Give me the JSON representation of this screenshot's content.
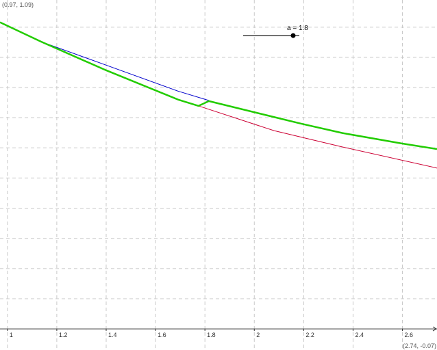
{
  "view": {
    "top_left_label": "(0.97, 1.09)",
    "bottom_right_label": "(2.74, -0.07)"
  },
  "slider": {
    "label": "a = 1.8",
    "value": 1.8,
    "fraction": 0.89
  },
  "chart_data": {
    "type": "line",
    "xlim": [
      0.97,
      2.74
    ],
    "ylim": [
      -0.07,
      1.09
    ],
    "grid": true,
    "x_ticks": [
      1,
      1.2,
      1.4,
      1.6,
      1.8,
      2,
      2.2,
      2.4,
      2.6
    ],
    "x_tick_labels": [
      "1",
      "1.2",
      "1.4",
      "1.6",
      "1.8",
      "2",
      "2.2",
      "2.4",
      "2.6"
    ],
    "x_grid_step": 0.2,
    "y_grid_step": 0.1,
    "series": [
      {
        "color": "#0000cc",
        "width": 1,
        "points": [
          [
            0.97,
            1.016
          ],
          [
            1.136,
            0.952
          ],
          [
            1.4,
            0.874
          ],
          [
            1.691,
            0.788
          ],
          [
            1.816,
            0.757
          ]
        ]
      },
      {
        "color": "#cc0033",
        "width": 1,
        "points": [
          [
            1.774,
            0.739
          ],
          [
            2.08,
            0.657
          ],
          [
            2.357,
            0.603
          ],
          [
            2.74,
            0.533
          ]
        ]
      },
      {
        "color": "#22cc00",
        "width": 2.5,
        "points": [
          [
            0.97,
            1.016
          ],
          [
            1.136,
            0.952
          ],
          [
            1.4,
            0.857
          ],
          [
            1.691,
            0.76
          ],
          [
            1.774,
            0.739
          ],
          [
            1.79,
            0.745
          ],
          [
            1.816,
            0.755
          ],
          [
            2.08,
            0.702
          ],
          [
            2.19,
            0.68
          ],
          [
            2.357,
            0.649
          ],
          [
            2.593,
            0.615
          ],
          [
            2.74,
            0.596
          ]
        ]
      }
    ]
  }
}
